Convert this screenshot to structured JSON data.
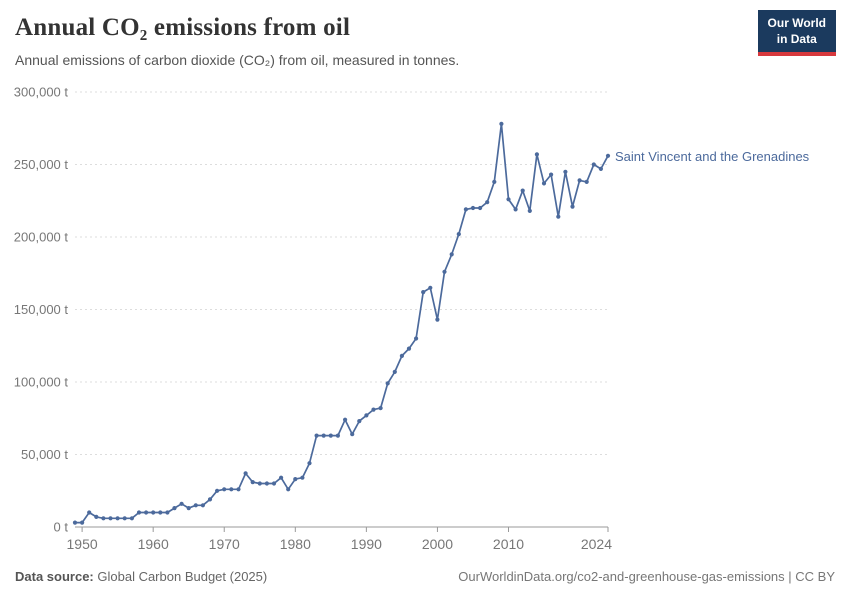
{
  "header": {
    "title": "Annual CO₂ emissions from oil",
    "subtitle": "Annual emissions of carbon dioxide (CO₂) from oil, measured in tonnes.",
    "logo": {
      "line1": "Our World",
      "line2": "in Data"
    }
  },
  "chart_data": {
    "type": "line",
    "title": "Annual CO₂ emissions from oil",
    "ylabel": "",
    "xlabel": "",
    "grid": "horizontal-dashed",
    "legend_position": "end-of-line-label",
    "xlim": [
      1949,
      2024
    ],
    "ylim": [
      0,
      300000
    ],
    "x_ticks": [
      1950,
      1960,
      1970,
      1980,
      1990,
      2000,
      2010,
      2024
    ],
    "y_ticks": [
      0,
      50000,
      100000,
      150000,
      200000,
      250000,
      300000
    ],
    "y_tick_labels": [
      "0 t",
      "50,000 t",
      "100,000 t",
      "150,000 t",
      "200,000 t",
      "250,000 t",
      "300,000 t"
    ],
    "series": [
      {
        "name": "Saint Vincent and the Grenadines",
        "color": "#4C6A9C",
        "x": [
          1949,
          1950,
          1951,
          1952,
          1953,
          1954,
          1955,
          1956,
          1957,
          1958,
          1959,
          1960,
          1961,
          1962,
          1963,
          1964,
          1965,
          1966,
          1967,
          1968,
          1969,
          1970,
          1971,
          1972,
          1973,
          1974,
          1975,
          1976,
          1977,
          1978,
          1979,
          1980,
          1981,
          1982,
          1983,
          1984,
          1985,
          1986,
          1987,
          1988,
          1989,
          1990,
          1991,
          1992,
          1993,
          1994,
          1995,
          1996,
          1997,
          1998,
          1999,
          2000,
          2001,
          2002,
          2003,
          2004,
          2005,
          2006,
          2007,
          2008,
          2009,
          2010,
          2011,
          2012,
          2013,
          2014,
          2015,
          2016,
          2017,
          2018,
          2019,
          2020,
          2021,
          2022,
          2023,
          2024
        ],
        "values": [
          3000,
          3000,
          10000,
          7000,
          6000,
          6000,
          6000,
          6000,
          6000,
          10000,
          10000,
          10000,
          10000,
          10000,
          13000,
          16000,
          13000,
          15000,
          15000,
          19000,
          25000,
          26000,
          26000,
          26000,
          37000,
          31000,
          30000,
          30000,
          30000,
          34000,
          26000,
          33000,
          34000,
          44000,
          63000,
          63000,
          63000,
          63000,
          74000,
          64000,
          73000,
          77000,
          81000,
          82000,
          99000,
          107000,
          118000,
          123000,
          130000,
          162000,
          165000,
          143000,
          176000,
          188000,
          202000,
          219000,
          220000,
          220000,
          224000,
          238000,
          278000,
          226000,
          219000,
          232000,
          218000,
          257000,
          237000,
          243000,
          214000,
          245000,
          221000,
          239000,
          238000,
          250000,
          247000,
          256000
        ]
      }
    ]
  },
  "footer": {
    "source_label": "Data source:",
    "source": "Global Carbon Budget (2025)",
    "attribution": "OurWorldinData.org/co2-and-greenhouse-gas-emissions | CC BY"
  },
  "colors": {
    "line": "#4C6A9C",
    "entity_label": "#4C6A9C",
    "gridline": "#dddddd",
    "axis": "#999999",
    "tick_text": "#777777",
    "logo_bg": "#1b3a5e",
    "logo_accent": "#d7383d"
  }
}
